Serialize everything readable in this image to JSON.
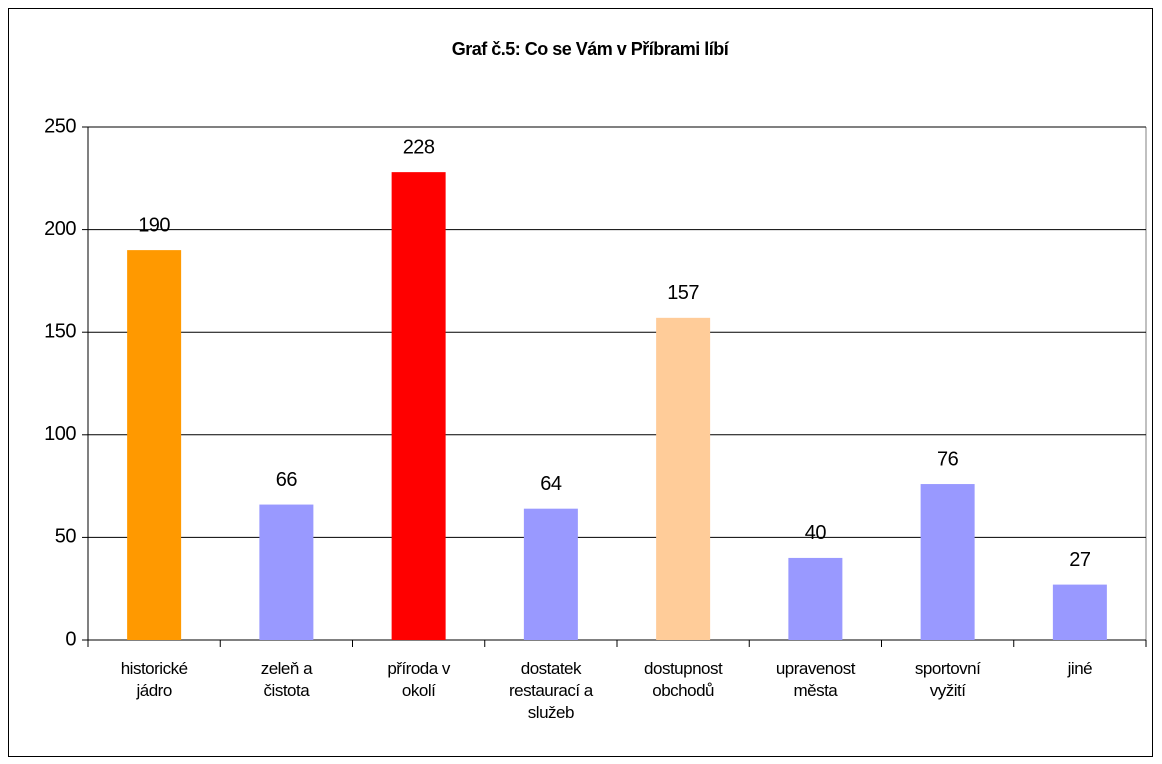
{
  "chart_data": {
    "type": "bar",
    "title": "Graf č.5: Co se Vám v Příbrami líbí",
    "categories": [
      "historické\njádro",
      "zeleň a\nčistota",
      "příroda v\nokolí",
      "dostatek\nrestaurací a\nslužeb",
      "dostupnost\nobchodů",
      "upravenost\nměsta",
      "sportovní\nvyžití",
      "jiné"
    ],
    "values": [
      190,
      66,
      228,
      64,
      157,
      40,
      76,
      27
    ],
    "colors": [
      "#ff9900",
      "#9999ff",
      "#ff0000",
      "#9999ff",
      "#ffcc99",
      "#9999ff",
      "#9999ff",
      "#9999ff"
    ],
    "ylim": [
      0,
      250
    ],
    "yticks": [
      0,
      50,
      100,
      150,
      200,
      250
    ],
    "grid": true
  }
}
